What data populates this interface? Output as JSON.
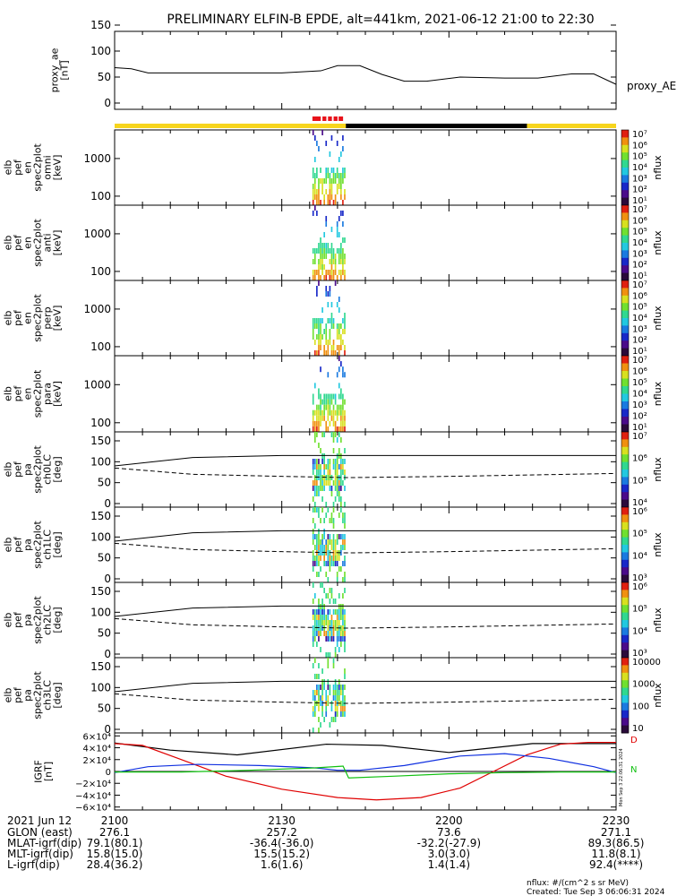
{
  "title": "PRELIMINARY ELFIN-B EPDE, alt=441km, 2021-06-12 21:00 to 22:30",
  "panels": [
    {
      "id": "ae",
      "ylabel": [
        "proxy_ae",
        "[nT]"
      ],
      "yticks": [
        "150",
        "100",
        "50",
        "0"
      ],
      "right_label": "proxy_AE"
    },
    {
      "id": "omni",
      "ylabel": [
        "elb",
        "pef",
        "en",
        "spec2plot",
        "omni",
        "[keV]"
      ],
      "yticks": [
        "1000",
        "100"
      ]
    },
    {
      "id": "anti",
      "ylabel": [
        "elb",
        "pef",
        "en",
        "spec2plot",
        "anti",
        "[keV]"
      ],
      "yticks": [
        "1000",
        "100"
      ]
    },
    {
      "id": "perp",
      "ylabel": [
        "elb",
        "pef",
        "en",
        "spec2plot",
        "perp",
        "[keV]"
      ],
      "yticks": [
        "1000",
        "100"
      ]
    },
    {
      "id": "para",
      "ylabel": [
        "elb",
        "pef",
        "en",
        "spec2plot",
        "para",
        "[keV]"
      ],
      "yticks": [
        "1000",
        "100"
      ]
    },
    {
      "id": "ch0",
      "ylabel": [
        "elb",
        "pef",
        "pa",
        "spec2plot",
        "ch0LC",
        "[deg]"
      ],
      "yticks": [
        "150",
        "100",
        "50",
        "0"
      ]
    },
    {
      "id": "ch1",
      "ylabel": [
        "elb",
        "pef",
        "pa",
        "spec2plot",
        "ch1LC",
        "[deg]"
      ],
      "yticks": [
        "150",
        "100",
        "50",
        "0"
      ]
    },
    {
      "id": "ch2",
      "ylabel": [
        "elb",
        "pef",
        "pa",
        "spec2plot",
        "ch2LC",
        "[deg]"
      ],
      "yticks": [
        "150",
        "100",
        "50",
        "0"
      ]
    },
    {
      "id": "ch3",
      "ylabel": [
        "elb",
        "pef",
        "pa",
        "spec2plot",
        "ch3LC",
        "[deg]"
      ],
      "yticks": [
        "150",
        "100",
        "50",
        "0"
      ]
    },
    {
      "id": "igrf",
      "ylabel": [
        "IGRF",
        "[nT]"
      ],
      "yticks": [
        "6×10⁴",
        "4×10⁴",
        "2×10⁴",
        "0",
        "−2×10⁴",
        "−4×10⁴",
        "−6×10⁴"
      ]
    }
  ],
  "colorbars": [
    {
      "panel": "omni",
      "label": "nflux",
      "ticks": [
        "10⁷",
        "10⁶",
        "10⁵",
        "10⁴",
        "10³",
        "10²",
        "10¹"
      ]
    },
    {
      "panel": "anti",
      "label": "nflux",
      "ticks": [
        "10⁷",
        "10⁶",
        "10⁵",
        "10⁴",
        "10³",
        "10²",
        "10¹"
      ]
    },
    {
      "panel": "perp",
      "label": "nflux",
      "ticks": [
        "10⁷",
        "10⁶",
        "10⁵",
        "10⁴",
        "10³",
        "10²",
        "10¹"
      ]
    },
    {
      "panel": "para",
      "label": "nflux",
      "ticks": [
        "10⁷",
        "10⁶",
        "10⁵",
        "10⁴",
        "10³",
        "10²",
        "10¹"
      ]
    },
    {
      "panel": "ch0",
      "label": "nflux",
      "ticks": [
        "10⁷",
        "10⁶",
        "10⁵",
        "10⁴"
      ]
    },
    {
      "panel": "ch1",
      "label": "nflux",
      "ticks": [
        "10⁶",
        "10⁵",
        "10⁴",
        "10³"
      ]
    },
    {
      "panel": "ch2",
      "label": "nflux",
      "ticks": [
        "10⁶",
        "10⁵",
        "10⁴",
        "10³"
      ]
    },
    {
      "panel": "ch3",
      "label": "nflux",
      "ticks": [
        "10000",
        "1000",
        "100",
        "10"
      ]
    }
  ],
  "igrf_legend": [
    "D",
    "N"
  ],
  "side_stamp": "Mon Sep  3 22:06:31 2024",
  "bottom_table": {
    "header": [
      "2021 Jun 12",
      "2100",
      "2130",
      "2200",
      "2230"
    ],
    "rows": [
      [
        "GLON (east)",
        "276.1",
        "257.2",
        "73.6",
        "271.1"
      ],
      [
        "MLAT-igrf(dip)",
        "79.1(80.1)",
        "-36.4(-36.0)",
        "-32.2(-27.9)",
        "89.3(86.5)"
      ],
      [
        "MLT-igrf(dip)",
        "15.8(15.0)",
        "15.5(15.2)",
        "3.0(3.0)",
        "11.8(8.1)"
      ],
      [
        "L-igrf(dip)",
        "28.4(36.2)",
        "1.6(1.6)",
        "1.4(1.4)",
        "92.4(****)"
      ]
    ]
  },
  "footer": {
    "units": "nflux: #/(cm^2 s sr MeV)",
    "created": "Created: Tue Sep  3 06:06:31 2024"
  },
  "colors": {
    "bar_yellow": "#f7d51d",
    "bar_black": "#000000",
    "bar_red": "#e8121a",
    "igrf_red": "#e00000",
    "igrf_blue": "#1030e0",
    "igrf_green": "#10c010",
    "igrf_black": "#000000"
  },
  "chart_data": {
    "type": "line",
    "title": "PRELIMINARY ELFIN-B EPDE, alt=441km, 2021-06-12 21:00 to 22:30",
    "x_ticks": [
      "2100",
      "2130",
      "2200",
      "2230"
    ],
    "x_range_min": [
      0,
      90
    ],
    "proxy_ae": {
      "ylim": [
        0,
        150
      ],
      "x": [
        0,
        3,
        6,
        15,
        30,
        37,
        40,
        44,
        48,
        52,
        56,
        62,
        70,
        76,
        82,
        86,
        90
      ],
      "y": [
        68,
        66,
        58,
        58,
        58,
        62,
        72,
        72,
        55,
        42,
        42,
        50,
        48,
        48,
        56,
        56,
        36
      ]
    },
    "igrf": {
      "ylim": [
        -65000,
        65000
      ],
      "series": [
        {
          "color": "black",
          "x": [
            0,
            10,
            22,
            38,
            48,
            60,
            75,
            90
          ],
          "y": [
            48000,
            36000,
            28000,
            46000,
            44000,
            32000,
            47000,
            47000
          ]
        },
        {
          "color": "red",
          "x": [
            0,
            5,
            12,
            20,
            30,
            40,
            47,
            55,
            62,
            68,
            74,
            80,
            85,
            90
          ],
          "y": [
            47000,
            44000,
            20000,
            -8000,
            -30000,
            -44000,
            -48000,
            -44000,
            -28000,
            0,
            28000,
            46000,
            49000,
            49000
          ]
        },
        {
          "color": "blue",
          "x": [
            0,
            6,
            15,
            26,
            36,
            40,
            44,
            52,
            62,
            70,
            78,
            86,
            90
          ],
          "y": [
            -2000,
            8000,
            12000,
            10000,
            6000,
            2000,
            2000,
            10000,
            26000,
            30000,
            22000,
            8000,
            -2000
          ]
        },
        {
          "color": "green",
          "x": [
            0,
            12,
            24,
            36,
            41,
            42,
            50,
            60,
            70,
            80,
            90
          ],
          "y": [
            -1000,
            -1000,
            2000,
            6000,
            9000,
            -11000,
            -8000,
            -4000,
            -2000,
            -1000,
            -1000
          ]
        }
      ]
    },
    "data_window_min": [
      35.5,
      41.5
    ],
    "status_bar": {
      "yellow": [
        [
          0,
          41.5
        ],
        [
          74,
          90
        ]
      ],
      "black": [
        [
          41.5,
          74
        ]
      ],
      "red_marks": [
        [
          35.5,
          37
        ],
        [
          37.3,
          38
        ],
        [
          38.3,
          39
        ],
        [
          39.3,
          40
        ],
        [
          40.2,
          41
        ]
      ]
    },
    "pitch_lines": {
      "loss_cone_solid": [
        [
          0,
          90
        ],
        [
          14,
          110
        ],
        [
          30,
          115
        ],
        [
          90,
          115
        ]
      ],
      "anti_lc_dashed": [
        [
          0,
          85
        ],
        [
          14,
          70
        ],
        [
          30,
          65
        ],
        [
          42,
          62
        ],
        [
          60,
          65
        ],
        [
          90,
          72
        ]
      ]
    }
  }
}
